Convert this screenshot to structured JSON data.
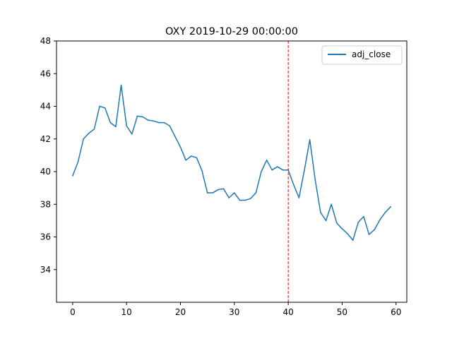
{
  "chart_data": {
    "type": "line",
    "title": "OXY 2019-10-29 00:00:00",
    "xlabel": "",
    "ylabel": "",
    "xlim": [
      -3,
      62
    ],
    "ylim": [
      32,
      48
    ],
    "x_ticks": [
      0,
      10,
      20,
      30,
      40,
      50,
      60
    ],
    "y_ticks": [
      34,
      36,
      38,
      40,
      42,
      44,
      46,
      48
    ],
    "grid": false,
    "legend_position": "top-right",
    "series": [
      {
        "name": "adj_close",
        "color": "#1f77b4",
        "x": [
          0,
          1,
          2,
          3,
          4,
          5,
          6,
          7,
          8,
          9,
          10,
          11,
          12,
          13,
          14,
          15,
          16,
          17,
          18,
          19,
          20,
          21,
          22,
          23,
          24,
          25,
          26,
          27,
          28,
          29,
          30,
          31,
          32,
          33,
          34,
          35,
          36,
          37,
          38,
          39,
          40,
          41,
          42,
          43,
          44,
          45,
          46,
          47,
          48,
          49,
          50,
          51,
          52,
          53,
          54,
          55,
          56,
          57,
          58,
          59
        ],
        "values": [
          39.75,
          40.6,
          42.0,
          42.35,
          42.6,
          44.0,
          43.9,
          43.0,
          42.75,
          45.3,
          42.8,
          42.3,
          43.4,
          43.35,
          43.15,
          43.1,
          43.0,
          43.0,
          42.8,
          42.15,
          41.5,
          40.7,
          40.95,
          40.85,
          40.05,
          38.7,
          38.7,
          38.9,
          38.95,
          38.4,
          38.7,
          38.25,
          38.25,
          38.35,
          38.7,
          40.0,
          40.7,
          40.1,
          40.3,
          40.1,
          40.1,
          39.2,
          38.4,
          40.1,
          41.95,
          39.5,
          37.5,
          37.0,
          38.0,
          36.85,
          36.5,
          36.2,
          35.8,
          36.9,
          37.25,
          36.15,
          36.45,
          37.05,
          37.5,
          37.85
        ]
      }
    ],
    "vline": {
      "x": 40,
      "color": "#ff0000",
      "style": "dashed"
    }
  }
}
